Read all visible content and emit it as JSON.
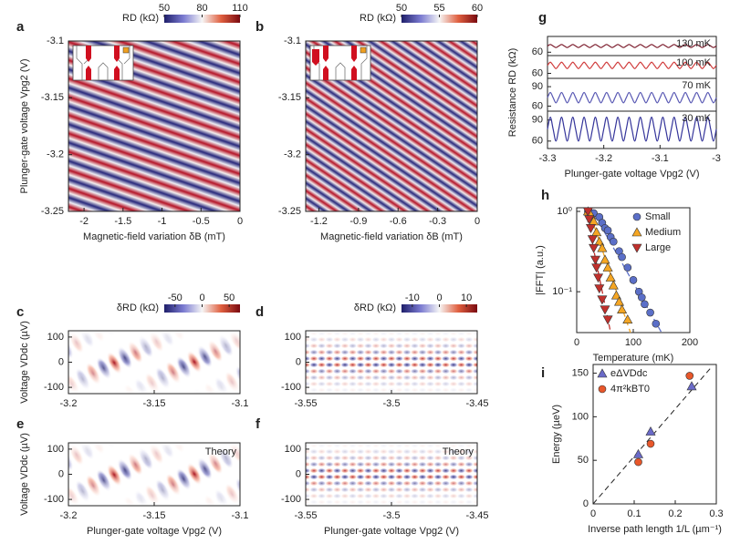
{
  "chart_data": [
    {
      "type": "heatmap",
      "label": "a",
      "xlabel": "Magnetic-field variation δB (mT)",
      "ylabel": "Plunger-gate voltage Vpg2 (V)",
      "xlim": [
        -2.2,
        0
      ],
      "xticks": [
        -2,
        -1.5,
        -1,
        -0.5,
        0
      ],
      "ylim": [
        -3.25,
        -3.1
      ],
      "yticks": [
        -3.1,
        -3.15,
        -3.2,
        -3.25
      ],
      "colorbar": {
        "label": "RD (kΩ)",
        "lim": [
          50,
          110
        ],
        "ticks": [
          50,
          80,
          110
        ]
      }
    },
    {
      "type": "heatmap",
      "label": "b",
      "xlabel": "Magnetic-field variation δB (mT)",
      "xlim": [
        -1.3,
        0
      ],
      "xticks": [
        -1.2,
        -0.9,
        -0.6,
        -0.3,
        0
      ],
      "ylim": [
        -3.25,
        -3.1
      ],
      "yticks": [
        -3.1,
        -3.15,
        -3.2,
        -3.25
      ],
      "colorbar": {
        "label": "RD (kΩ)",
        "lim": [
          50,
          60
        ],
        "ticks": [
          50,
          55,
          60
        ]
      }
    },
    {
      "type": "heatmap",
      "label": "c",
      "ylabel": "Voltage VDdc (µV)",
      "xlim": [
        -3.2,
        -3.1
      ],
      "xticks": [
        -3.2,
        -3.15,
        -3.1
      ],
      "ylim": [
        -125,
        125
      ],
      "yticks": [
        100,
        0,
        -100
      ],
      "colorbar": {
        "label": "δRD (kΩ)",
        "lim": [
          -70,
          70
        ],
        "ticks": [
          -50,
          0,
          50
        ]
      }
    },
    {
      "type": "heatmap",
      "label": "d",
      "xlim": [
        -3.55,
        -3.45
      ],
      "xticks": [
        -3.55,
        -3.5,
        -3.45
      ],
      "ylim": [
        -125,
        125
      ],
      "yticks": [
        100,
        0,
        -100
      ],
      "colorbar": {
        "label": "δRD (kΩ)",
        "lim": [
          -14,
          14
        ],
        "ticks": [
          -10,
          0,
          10
        ]
      }
    },
    {
      "type": "heatmap",
      "label": "e",
      "ylabel": "Voltage VDdc (µV)",
      "xlabel": "Plunger-gate voltage Vpg2 (V)",
      "annotation": "Theory",
      "xlim": [
        -3.2,
        -3.1
      ],
      "xticks": [
        -3.2,
        -3.15,
        -3.1
      ],
      "ylim": [
        -125,
        125
      ],
      "yticks": [
        100,
        0,
        -100
      ]
    },
    {
      "type": "heatmap",
      "label": "f",
      "xlabel": "Plunger-gate voltage Vpg2 (V)",
      "annotation": "Theory",
      "xlim": [
        -3.55,
        -3.45
      ],
      "xticks": [
        -3.55,
        -3.5,
        -3.45
      ],
      "ylim": [
        -125,
        125
      ],
      "yticks": [
        100,
        0,
        -100
      ]
    },
    {
      "type": "line",
      "label": "g",
      "xlabel": "Plunger-gate voltage Vpg2 (V)",
      "ylabel": "Resistance RD (kΩ)",
      "xlim": [
        -3.3,
        -3
      ],
      "xticks": [
        -3.3,
        -3.2,
        -3.1,
        -3
      ],
      "x": [
        -3.3,
        -3.295,
        -3.29,
        -3.285,
        -3.28,
        -3.275,
        -3.27,
        -3.265,
        -3.26,
        -3.255,
        -3.25,
        -3.245,
        -3.24,
        -3.235,
        -3.23,
        -3.225,
        -3.22,
        -3.215,
        -3.21,
        -3.205,
        -3.2,
        -3.195,
        -3.19,
        -3.185,
        -3.18,
        -3.175,
        -3.17,
        -3.165,
        -3.16,
        -3.155,
        -3.15,
        -3.145,
        -3.14,
        -3.135,
        -3.13,
        -3.125,
        -3.12,
        -3.115,
        -3.11,
        -3.105,
        -3.1,
        -3.095,
        -3.09,
        -3.085,
        -3.08,
        -3.075,
        -3.07,
        -3.065,
        -3.06,
        -3.055,
        -3.05,
        -3.045,
        -3.04,
        -3.035,
        -3.03,
        -3.025,
        -3.02,
        -3.015,
        -3.01,
        -3.005,
        -3
      ],
      "series": [
        {
          "name": "130 mK",
          "color": "#7a1a2a",
          "ylim": [
            58,
            78
          ],
          "yticks": [
            60
          ],
          "values": [
            68,
            70,
            68,
            66,
            68,
            70,
            68,
            66,
            68,
            70,
            68,
            66,
            68,
            70,
            68,
            66,
            68,
            70,
            68,
            66,
            68,
            70,
            68,
            66,
            68,
            70,
            68,
            66,
            68,
            70,
            68,
            66,
            68,
            70,
            68,
            66,
            68,
            70,
            68,
            66,
            68,
            70,
            68,
            66,
            68,
            70,
            68,
            66,
            68,
            70,
            68,
            66,
            68,
            70,
            68,
            66,
            68,
            70,
            68,
            66,
            68
          ]
        },
        {
          "name": "100 mK",
          "color": "#d03a3a",
          "ylim": [
            56,
            80
          ],
          "yticks": [
            60
          ],
          "values": [
            70,
            74,
            70,
            66,
            70,
            74,
            70,
            66,
            70,
            74,
            70,
            66,
            70,
            74,
            70,
            66,
            70,
            74,
            70,
            66,
            70,
            74,
            70,
            66,
            70,
            74,
            70,
            66,
            70,
            74,
            70,
            66,
            70,
            74,
            70,
            66,
            70,
            74,
            70,
            66,
            70,
            74,
            70,
            66,
            70,
            74,
            70,
            66,
            70,
            74,
            70,
            66,
            70,
            74,
            70,
            66,
            70,
            74,
            70,
            66,
            70
          ]
        },
        {
          "name": "70 mK",
          "color": "#5a5ab4",
          "ylim": [
            55,
            100
          ],
          "yticks": [
            60,
            90
          ],
          "values": [
            73,
            81,
            73,
            65,
            73,
            81,
            73,
            65,
            73,
            81,
            73,
            65,
            73,
            81,
            73,
            65,
            73,
            81,
            73,
            65,
            73,
            81,
            73,
            65,
            73,
            81,
            73,
            65,
            73,
            81,
            73,
            65,
            73,
            81,
            73,
            65,
            73,
            81,
            73,
            65,
            73,
            81,
            73,
            65,
            73,
            81,
            73,
            65,
            73,
            81,
            73,
            65,
            73,
            81,
            73,
            65,
            73,
            81,
            73,
            65,
            73
          ]
        },
        {
          "name": "30 mK",
          "color": "#34349a",
          "ylim": [
            52,
            100
          ],
          "yticks": [
            60,
            90
          ],
          "values": [
            77,
            94,
            77,
            60,
            77,
            94,
            77,
            60,
            77,
            94,
            77,
            60,
            77,
            94,
            77,
            60,
            77,
            94,
            77,
            60,
            77,
            94,
            77,
            60,
            77,
            94,
            77,
            60,
            77,
            94,
            77,
            60,
            77,
            94,
            77,
            60,
            77,
            94,
            77,
            60,
            77,
            94,
            77,
            60,
            77,
            94,
            77,
            60,
            77,
            94,
            77,
            60,
            77,
            94,
            77,
            60,
            77,
            94,
            77,
            60,
            77
          ]
        }
      ]
    },
    {
      "type": "scatter",
      "label": "h",
      "xlabel": "Temperature (mK)",
      "ylabel": "|FFT| (a.u.)",
      "yscale": "log",
      "legend": "upper right",
      "xlim": [
        0,
        200
      ],
      "xticks": [
        0,
        100,
        200
      ],
      "ylim": [
        0.031,
        1.11
      ],
      "yticks": [
        {
          "value": 1,
          "label": "10⁰"
        },
        {
          "value": 0.1,
          "label": "10⁻¹"
        }
      ],
      "series": [
        {
          "name": "Small",
          "color": "#5b6fc8",
          "marker": "o",
          "x": [
            20,
            30,
            40,
            45,
            50,
            55,
            60,
            65,
            75,
            80,
            90,
            100,
            110,
            115,
            120,
            130,
            140
          ],
          "values": [
            1.0,
            0.95,
            0.85,
            0.72,
            0.62,
            0.58,
            0.48,
            0.42,
            0.32,
            0.27,
            0.2,
            0.14,
            0.1,
            0.085,
            0.07,
            0.055,
            0.04
          ],
          "fit_x": [
            25,
            150
          ],
          "fit_values": [
            1.1,
            0.031
          ]
        },
        {
          "name": "Medium",
          "color": "#f5a623",
          "marker": "^",
          "x": [
            20,
            25,
            30,
            35,
            40,
            45,
            50,
            55,
            60,
            65,
            70,
            75,
            80,
            90
          ],
          "values": [
            1.0,
            0.9,
            0.75,
            0.55,
            0.42,
            0.35,
            0.25,
            0.2,
            0.15,
            0.12,
            0.09,
            0.075,
            0.06,
            0.045
          ],
          "fit_x": [
            20,
            95
          ],
          "fit_values": [
            1.1,
            0.031
          ]
        },
        {
          "name": "Large",
          "color": "#c0302c",
          "marker": "v",
          "x": [
            20,
            22,
            25,
            28,
            30,
            33,
            35,
            38,
            40,
            45,
            50,
            55
          ],
          "values": [
            1.0,
            0.8,
            0.62,
            0.45,
            0.35,
            0.25,
            0.2,
            0.15,
            0.11,
            0.08,
            0.06,
            0.045
          ],
          "fit_x": [
            15,
            60
          ],
          "fit_values": [
            1.1,
            0.031
          ]
        }
      ]
    },
    {
      "type": "scatter",
      "label": "i",
      "xlabel": "Inverse path length 1/L (µm⁻¹)",
      "ylabel": "Energy (µeV)",
      "legend": "upper left",
      "xlim": [
        0,
        0.3
      ],
      "xticks": [
        0,
        0.1,
        0.2,
        0.3
      ],
      "ylim": [
        0,
        160
      ],
      "yticks": [
        0,
        50,
        100,
        150
      ],
      "fit_x": [
        0,
        0.29
      ],
      "fit_values": [
        0,
        158
      ],
      "series": [
        {
          "name": "eΔVDdc",
          "color": "#6a6ac8",
          "marker": "^",
          "x": [
            0.11,
            0.14,
            0.24
          ],
          "values": [
            57,
            83,
            135
          ]
        },
        {
          "name": "4π²kBT0",
          "color": "#e8572a",
          "marker": "o",
          "x": [
            0.11,
            0.14,
            0.235
          ],
          "values": [
            48,
            69,
            147
          ]
        }
      ]
    }
  ]
}
